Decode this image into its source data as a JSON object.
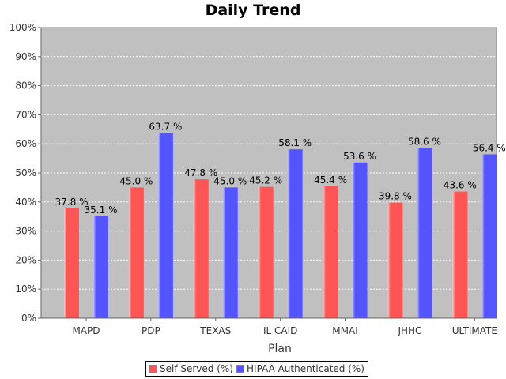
{
  "chart_data": {
    "type": "bar",
    "title": "Daily Trend",
    "xlabel": "Plan",
    "ylabel": "",
    "categories": [
      "MAPD",
      "PDP",
      "TEXAS",
      "IL CAID",
      "MMAI",
      "JHHC",
      "ULTIMATE"
    ],
    "series": [
      {
        "name": "Self Served (%)",
        "color": "#ff5555",
        "values": [
          37.8,
          45.0,
          47.8,
          45.2,
          45.4,
          39.8,
          43.6
        ]
      },
      {
        "name": "HIPAA Authenticated (%)",
        "color": "#5555ff",
        "values": [
          35.1,
          63.7,
          45.0,
          58.1,
          53.6,
          58.6,
          56.4
        ]
      }
    ],
    "ylim": [
      0,
      100
    ],
    "yticks": [
      "0%",
      "10%",
      "20%",
      "30%",
      "40%",
      "50%",
      "60%",
      "70%",
      "80%",
      "90%",
      "100%"
    ],
    "data_labels": [
      [
        "37.8 %",
        "45.0 %",
        "47.8 %",
        "45.2 %",
        "45.4 %",
        "39.8 %",
        "43.6 %"
      ],
      [
        "35.1 %",
        "63.7 %",
        "45.0 %",
        "58.1 %",
        "53.6 %",
        "58.6 %",
        "56.4 %"
      ]
    ],
    "grid": true,
    "legend_position": "bottom",
    "plot_background": "#c0c0c0"
  }
}
